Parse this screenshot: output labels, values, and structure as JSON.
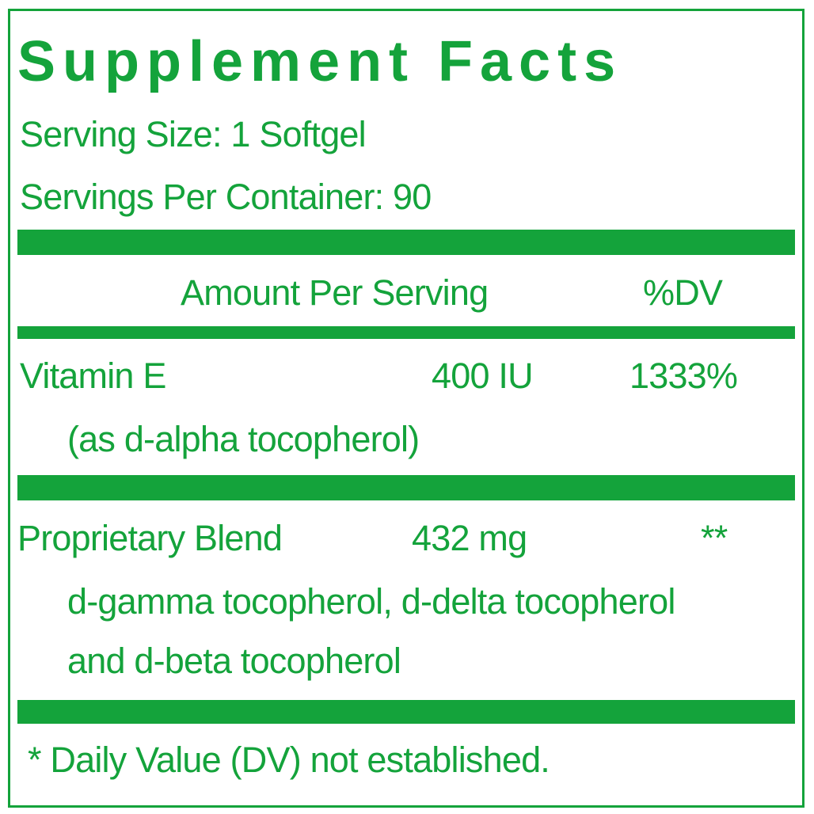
{
  "title": "Supplement Facts",
  "serving_size": "Serving Size: 1 Softgel",
  "servings_per_container": "Servings Per Container: 90",
  "header": {
    "amount": "Amount Per Serving",
    "dv": "%DV"
  },
  "rows": [
    {
      "name": "Vitamin E",
      "amount": "400 IU",
      "dv": "1333%",
      "detail": "(as d-alpha tocopherol)"
    },
    {
      "name": "Proprietary Blend",
      "amount": "432 mg",
      "dv": "**",
      "detail_lines": [
        "d-gamma tocopherol, d-delta tocopherol",
        "and d-beta tocopherol"
      ]
    }
  ],
  "footnote": "* Daily Value (DV) not established.",
  "colors": {
    "label_green": "#14a33b"
  }
}
